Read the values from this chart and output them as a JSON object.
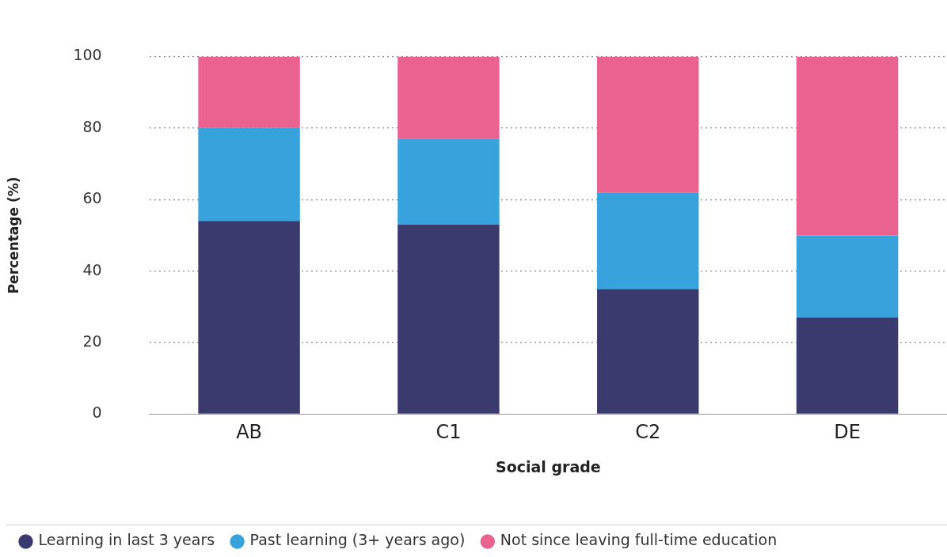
{
  "chart_data": {
    "type": "bar",
    "stacked": true,
    "xlabel": "Social grade",
    "ylabel": "Percentage (%)",
    "categories": [
      "AB",
      "C1",
      "C2",
      "DE"
    ],
    "series": [
      {
        "name": "Learning in last 3 years",
        "color": "#3b3a6e",
        "values": [
          54,
          53,
          35,
          27
        ]
      },
      {
        "name": "Past learning (3+ years ago)",
        "color": "#38a2dc",
        "values": [
          26,
          24,
          27,
          23
        ]
      },
      {
        "name": "Not since leaving full-time education",
        "color": "#e96290",
        "values": [
          20,
          23,
          38,
          50
        ]
      }
    ],
    "ylim": [
      0,
      100
    ],
    "yticks": [
      0,
      20,
      40,
      60,
      80,
      100
    ],
    "grid": "y",
    "legend": "bottom"
  }
}
